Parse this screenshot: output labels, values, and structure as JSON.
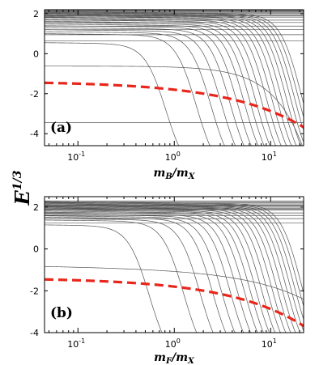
{
  "chart_data": [
    {
      "type": "line",
      "panel_label": "(a)",
      "xlabel": "m_B/m_X",
      "xscale": "log",
      "xlim": [
        0.045,
        22
      ],
      "ylim": [
        -4.6,
        2.2
      ],
      "x_ticks": [
        {
          "value": 0.1,
          "label": "10",
          "exp": "-1"
        },
        {
          "value": 1,
          "label": "10",
          "exp": "0"
        },
        {
          "value": 10,
          "label": "10",
          "exp": "1"
        }
      ],
      "y_ticks": [
        {
          "value": 2,
          "label": "2"
        },
        {
          "value": 0,
          "label": "0"
        },
        {
          "value": -2,
          "label": "-2"
        },
        {
          "value": -4,
          "label": "-4"
        }
      ],
      "reference": {
        "name": "red dashed",
        "color": "#e8261b",
        "y0": -1.38,
        "a": 0.42,
        "p": 0.55
      },
      "levels": {
        "flat": [
          1.83,
          1.89,
          1.95,
          2.0,
          2.04,
          2.08,
          2.12,
          2.16,
          2.19,
          1.68,
          1.56,
          1.38,
          1.2,
          0.95,
          0.65
        ],
        "drop_start": [
          0.55,
          1.0,
          1.1,
          1.2,
          1.3,
          1.4,
          1.48,
          1.55,
          1.62,
          1.69,
          1.75,
          1.81,
          1.86,
          1.91,
          1.95,
          1.99,
          2.03,
          2.07,
          2.11
        ],
        "drop_x": [
          0.82,
          1.7,
          2.4,
          3.1,
          3.8,
          4.5,
          5.3,
          6.1,
          7.0,
          8.0,
          9.1,
          10.3,
          11.6,
          13.0,
          14.5,
          16.0,
          17.6,
          19.3,
          21.0
        ],
        "bound": [
          {
            "y0": -0.62,
            "a": 0.055,
            "p": 1.4
          },
          {
            "y0": -3.45,
            "a": 0.0,
            "p": 1.0
          }
        ]
      },
      "color": "#555555"
    },
    {
      "type": "line",
      "panel_label": "(b)",
      "xlabel": "m_F/m_X",
      "xscale": "log",
      "xlim": [
        0.045,
        22
      ],
      "ylim": [
        -4.0,
        2.5
      ],
      "x_ticks": [
        {
          "value": 0.1,
          "label": "10",
          "exp": "-1"
        },
        {
          "value": 1,
          "label": "10",
          "exp": "0"
        },
        {
          "value": 10,
          "label": "10",
          "exp": "1"
        }
      ],
      "y_ticks": [
        {
          "value": 2,
          "label": "2"
        },
        {
          "value": 0,
          "label": "0"
        },
        {
          "value": -2,
          "label": "-2"
        },
        {
          "value": -4,
          "label": "-4"
        }
      ],
      "reference": {
        "name": "red dashed",
        "color": "#e8261b",
        "y0": -1.38,
        "a": 0.42,
        "p": 0.55
      },
      "levels": {
        "flat": [
          1.85,
          1.9,
          1.95,
          2.0,
          2.05,
          2.1,
          2.15,
          2.2,
          2.25,
          2.3,
          1.72,
          1.6,
          1.45,
          1.25
        ],
        "drop_start": [
          1.15,
          1.38,
          1.45,
          1.52,
          1.58,
          1.64,
          1.7,
          1.76,
          1.81,
          1.86,
          1.9,
          1.95,
          1.99,
          2.03,
          2.07,
          2.11,
          2.15,
          2.19,
          2.23,
          2.27
        ],
        "drop_x": [
          0.55,
          1.25,
          1.85,
          2.5,
          3.1,
          3.8,
          4.5,
          5.3,
          6.1,
          7.0,
          8.0,
          9.1,
          10.3,
          11.6,
          13.0,
          14.5,
          16.0,
          17.6,
          19.3,
          21.0
        ],
        "bound": [
          {
            "y0": -0.82,
            "a": 0.16,
            "p": 0.7
          }
        ]
      },
      "color": "#555555"
    }
  ],
  "shared_ylabel": "E",
  "shared_ylabel_exp": "1/3"
}
